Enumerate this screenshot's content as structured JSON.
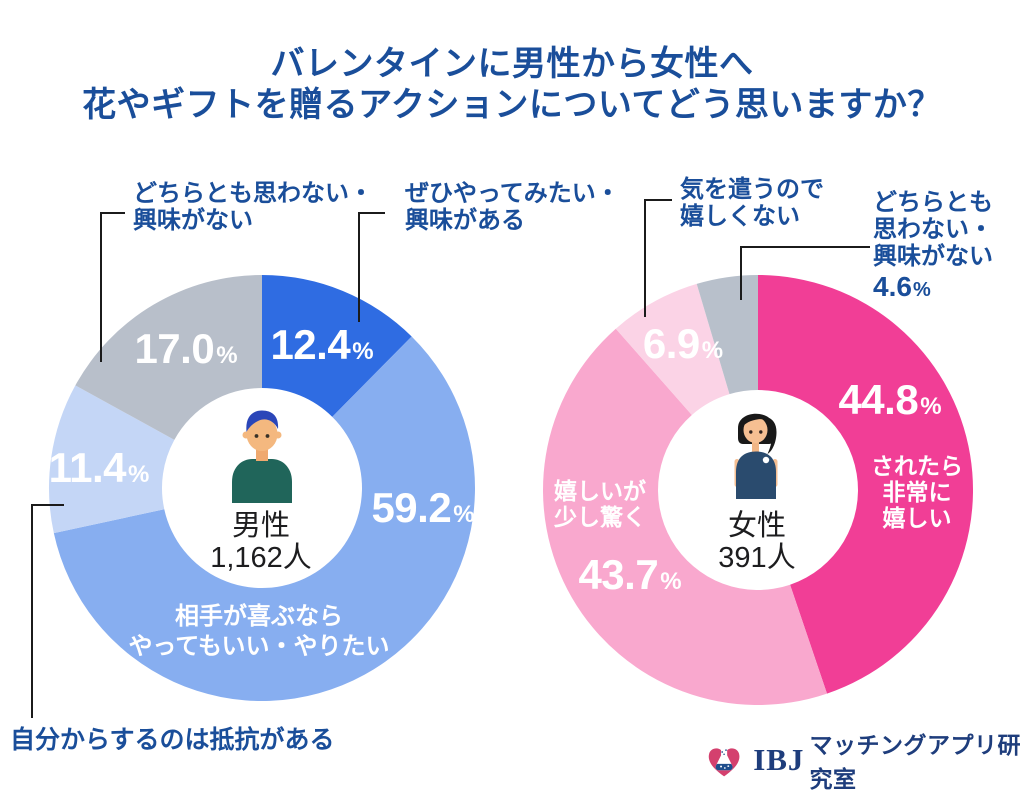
{
  "title": {
    "line1": "バレンタインに男性から女性へ",
    "line2": "花やギフトを贈るアクションについてどう思いますか？"
  },
  "unit": "%",
  "charts": [
    {
      "gender": "男性",
      "count": "1,162人",
      "segments": [
        {
          "label": "ぜひやってみたい・興味がある",
          "display": "12.4",
          "color": "#2F6CE2"
        },
        {
          "label": "相手が喜ぶならやってもいい・やりたい",
          "display": "59.2",
          "color": "#87AEF0",
          "inner_lines": [
            "相手が喜ぶなら",
            "やってもいい・やりたい"
          ]
        },
        {
          "label": "自分からするのは抵抗がある",
          "display": "11.4",
          "color": "#C4D6F6"
        },
        {
          "label": "どちらとも思わない・興味がない",
          "display": "17.0",
          "color": "#B8BFCA"
        }
      ]
    },
    {
      "gender": "女性",
      "count": "391人",
      "segments": [
        {
          "label": "されたら非常に嬉しい",
          "display": "44.8",
          "color": "#F13E96",
          "inner_lines": [
            "されたら",
            "非常に",
            "嬉しい"
          ]
        },
        {
          "label": "嬉しいが少し驚く",
          "display": "43.7",
          "color": "#F9A8CE",
          "inner_lines": [
            "嬉しいが",
            "少し驚く"
          ]
        },
        {
          "label": "気を遣うので嬉しくない",
          "display": "6.9",
          "color": "#FBD3E6"
        },
        {
          "label": "どちらとも思わない・興味がない",
          "display": "4.6",
          "color": "#B8C0CB"
        }
      ]
    }
  ],
  "annotations": {
    "male_neutral": {
      "lines": [
        "どちらとも思わない・",
        "興味がない"
      ]
    },
    "male_eager": {
      "lines": [
        "ぜひやってみたい・",
        "興味がある"
      ]
    },
    "male_resist": {
      "text": "自分からするのは抵抗がある"
    },
    "female_notglad": {
      "lines": [
        "気を遣うので",
        "嬉しくない"
      ]
    },
    "female_neutral": {
      "lines": [
        "どちらとも",
        "思わない・",
        "興味がない"
      ]
    }
  },
  "logo": {
    "ibj": "IBJ",
    "text": "マッチングアプリ研究室"
  },
  "chart_data": [
    {
      "type": "pie",
      "donut": true,
      "title": "男性 1,162人",
      "labels": [
        "ぜひやってみたい・興味がある",
        "相手が喜ぶならやってもいい・やりたい",
        "自分からするのは抵抗がある",
        "どちらとも思わない・興味がない"
      ],
      "values": [
        12.4,
        59.2,
        11.4,
        17.0
      ],
      "colors": [
        "#2F6CE2",
        "#87AEF0",
        "#C4D6F6",
        "#B8BFCA"
      ],
      "start_angle_clockwise_from_top_deg": 0
    },
    {
      "type": "pie",
      "donut": true,
      "title": "女性 391人",
      "labels": [
        "されたら非常に嬉しい",
        "嬉しいが少し驚く",
        "気を遣うので嬉しくない",
        "どちらとも思わない・興味がない"
      ],
      "values": [
        44.8,
        43.7,
        6.9,
        4.6
      ],
      "colors": [
        "#F13E96",
        "#F9A8CE",
        "#FBD3E6",
        "#B8C0CB"
      ],
      "start_angle_clockwise_from_top_deg": 0
    }
  ]
}
